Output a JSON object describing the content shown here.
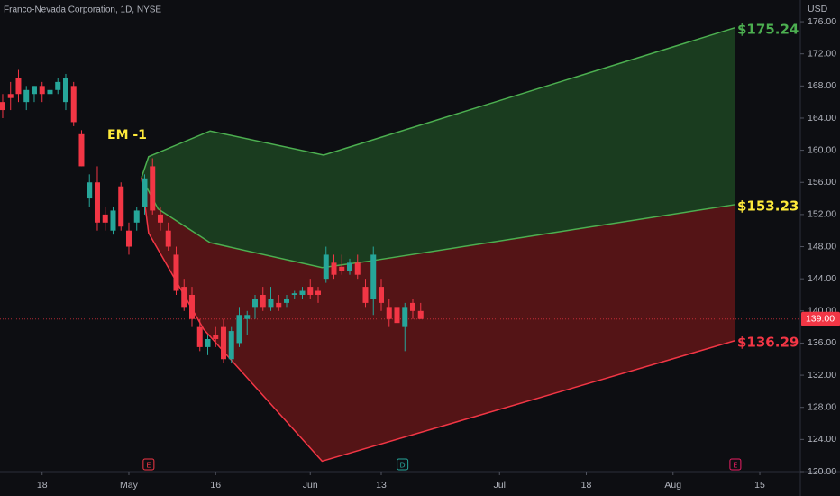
{
  "chart_data": {
    "type": "candlestick",
    "title": "Franco-Nevada Corporation, 1D, NYSE",
    "currency": "USD",
    "annotation": "EM -1",
    "up_color": "#26a69a",
    "down_color": "#f23645",
    "x": [
      0,
      1,
      2,
      3,
      4,
      5,
      6,
      7,
      8,
      9,
      10,
      11,
      12,
      13,
      14,
      15,
      16,
      17,
      18,
      19,
      20,
      21,
      22,
      23,
      24,
      25,
      26,
      27,
      28,
      29,
      30,
      31,
      32,
      33,
      34,
      35,
      36,
      37,
      38,
      39,
      40,
      41,
      42,
      43,
      44,
      45,
      46,
      47,
      48,
      49,
      50,
      51,
      52,
      53
    ],
    "open": [
      166,
      167,
      169,
      166,
      167,
      168,
      167,
      167.5,
      166,
      168,
      162,
      154,
      156,
      152,
      150,
      155.5,
      150,
      151,
      153,
      158,
      152,
      150,
      147,
      143,
      142,
      138,
      135.5,
      137,
      138,
      134,
      136,
      139,
      140.5,
      142,
      140.5,
      141,
      141,
      142,
      142,
      143,
      142.5,
      144,
      146,
      145.5,
      145,
      146,
      143,
      141.5,
      143,
      140.5,
      140.5,
      138,
      141,
      140
    ],
    "high": [
      167,
      168.5,
      170,
      168,
      168,
      168.5,
      168,
      169,
      169.5,
      168.5,
      162.5,
      157,
      158,
      153,
      153,
      156,
      151,
      153,
      157,
      159,
      153,
      151,
      148,
      144,
      143,
      139,
      137,
      138,
      139,
      138,
      140.5,
      140,
      142,
      143,
      143,
      142,
      142,
      142.5,
      143,
      144,
      143,
      148,
      147,
      147,
      146.5,
      147,
      144,
      148,
      144,
      141.5,
      141,
      141,
      141.5,
      141
    ],
    "low": [
      164,
      165,
      166,
      165,
      166,
      166,
      166,
      167,
      165,
      163,
      158,
      153,
      150,
      150,
      149.5,
      150,
      147,
      150,
      152,
      152,
      150,
      147.5,
      142,
      140,
      138,
      135,
      134.5,
      135.5,
      133.5,
      133.5,
      135.5,
      137,
      139,
      140,
      140,
      140,
      140.5,
      141.5,
      141.5,
      141.5,
      141,
      143.5,
      144,
      144.5,
      144.5,
      144,
      140.5,
      139.5,
      140,
      138,
      137,
      135,
      139,
      139
    ],
    "close": [
      165,
      166.5,
      167,
      167.5,
      168,
      167,
      167.5,
      168.5,
      169,
      163.5,
      158,
      156,
      151,
      151,
      152.5,
      150.5,
      148,
      152.5,
      156.5,
      152.5,
      151,
      148,
      142.5,
      140.5,
      139,
      135.5,
      136.5,
      136.5,
      134,
      137.5,
      139.5,
      139.5,
      141.5,
      140.5,
      141.5,
      140.5,
      141.5,
      142.2,
      142.5,
      142,
      142,
      147,
      144.5,
      145,
      146,
      144.5,
      141,
      147,
      141,
      139,
      138.5,
      140.5,
      140,
      139
    ],
    "upper": {
      "color": "#4caf50",
      "x": [
        17.6,
        18.5,
        26.3,
        40.7,
        92.8
      ],
      "values": [
        156.6,
        159.2,
        162.4,
        159.4,
        175.24
      ]
    },
    "middle": {
      "color": "#4caf50",
      "x": [
        17.6,
        19.7,
        26.3,
        40.5,
        46.5,
        92.8
      ],
      "values": [
        156.6,
        152.7,
        148.5,
        145.4,
        146.2,
        153.23
      ]
    },
    "lower": {
      "color": "#f23645",
      "x": [
        17.6,
        18.5,
        25.5,
        40.5,
        92.8
      ],
      "values": [
        156.6,
        149.7,
        137.7,
        121.3,
        136.29
      ]
    },
    "end_labels": [
      {
        "value": 175.24,
        "label": "$175.24",
        "color": "#4caf50"
      },
      {
        "value": 153.23,
        "label": "$153.23",
        "color": "#ffeb3b"
      },
      {
        "value": 136.29,
        "label": "$136.29",
        "color": "#f23645"
      }
    ],
    "last_price": {
      "value": 139,
      "label": "139.00"
    },
    "events": [
      {
        "x": 18.5,
        "label": "E",
        "color": "#f23645"
      },
      {
        "x": 50.7,
        "label": "D",
        "color": "#26a69a"
      },
      {
        "x": 92.9,
        "label": "E",
        "color": "#e91e63"
      }
    ],
    "xlim": [
      -0.34,
      101.14
    ],
    "ylim": [
      120,
      178.7
    ],
    "xticks": [
      {
        "value": 5,
        "label": "18"
      },
      {
        "value": 16,
        "label": "May"
      },
      {
        "value": 27,
        "label": "16"
      },
      {
        "value": 39,
        "label": "Jun"
      },
      {
        "value": 48,
        "label": "13"
      },
      {
        "value": 63,
        "label": "Jul"
      },
      {
        "value": 74,
        "label": "18"
      },
      {
        "value": 85,
        "label": "Aug"
      },
      {
        "value": 96,
        "label": "15"
      }
    ],
    "yticks": [
      {
        "value": 120,
        "label": "120.00"
      },
      {
        "value": 124,
        "label": "124.00"
      },
      {
        "value": 128,
        "label": "128.00"
      },
      {
        "value": 132,
        "label": "132.00"
      },
      {
        "value": 136,
        "label": "136.00"
      },
      {
        "value": 140,
        "label": "140.00"
      },
      {
        "value": 144,
        "label": "144.00"
      },
      {
        "value": 148,
        "label": "148.00"
      },
      {
        "value": 152,
        "label": "152.00"
      },
      {
        "value": 156,
        "label": "156.00"
      },
      {
        "value": 160,
        "label": "160.00"
      },
      {
        "value": 164,
        "label": "164.00"
      },
      {
        "value": 168,
        "label": "168.00"
      },
      {
        "value": 172,
        "label": "172.00"
      },
      {
        "value": 176,
        "label": "176.00"
      }
    ]
  }
}
